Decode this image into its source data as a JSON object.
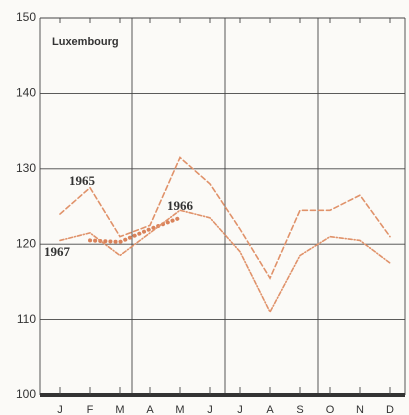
{
  "chart_data": {
    "type": "line",
    "title": "Luxembourg",
    "categories": [
      "J",
      "F",
      "M",
      "A",
      "M",
      "J",
      "J",
      "A",
      "S",
      "O",
      "N",
      "D"
    ],
    "ylim": [
      100,
      150
    ],
    "yticks": [
      100,
      110,
      120,
      130,
      140,
      150
    ],
    "grid": true,
    "series": [
      {
        "name": "1965",
        "color": "#e0926a",
        "style": "dashed",
        "values": [
          124,
          127.5,
          121,
          122.5,
          131.5,
          128,
          122,
          115.5,
          124.5,
          124.5,
          126.5,
          121
        ]
      },
      {
        "name": "1966",
        "color": "#d9825a",
        "style": "dotted",
        "values": [
          null,
          120.5,
          120.3,
          122,
          123.5,
          null,
          null,
          null,
          null,
          null,
          null,
          null
        ]
      },
      {
        "name": "1967",
        "color": "#e0926a",
        "style": "dash-dot",
        "values": [
          120.5,
          121.5,
          118.5,
          121.5,
          124.5,
          123.5,
          119,
          111,
          118.5,
          121,
          120.5,
          117.5
        ]
      }
    ]
  }
}
